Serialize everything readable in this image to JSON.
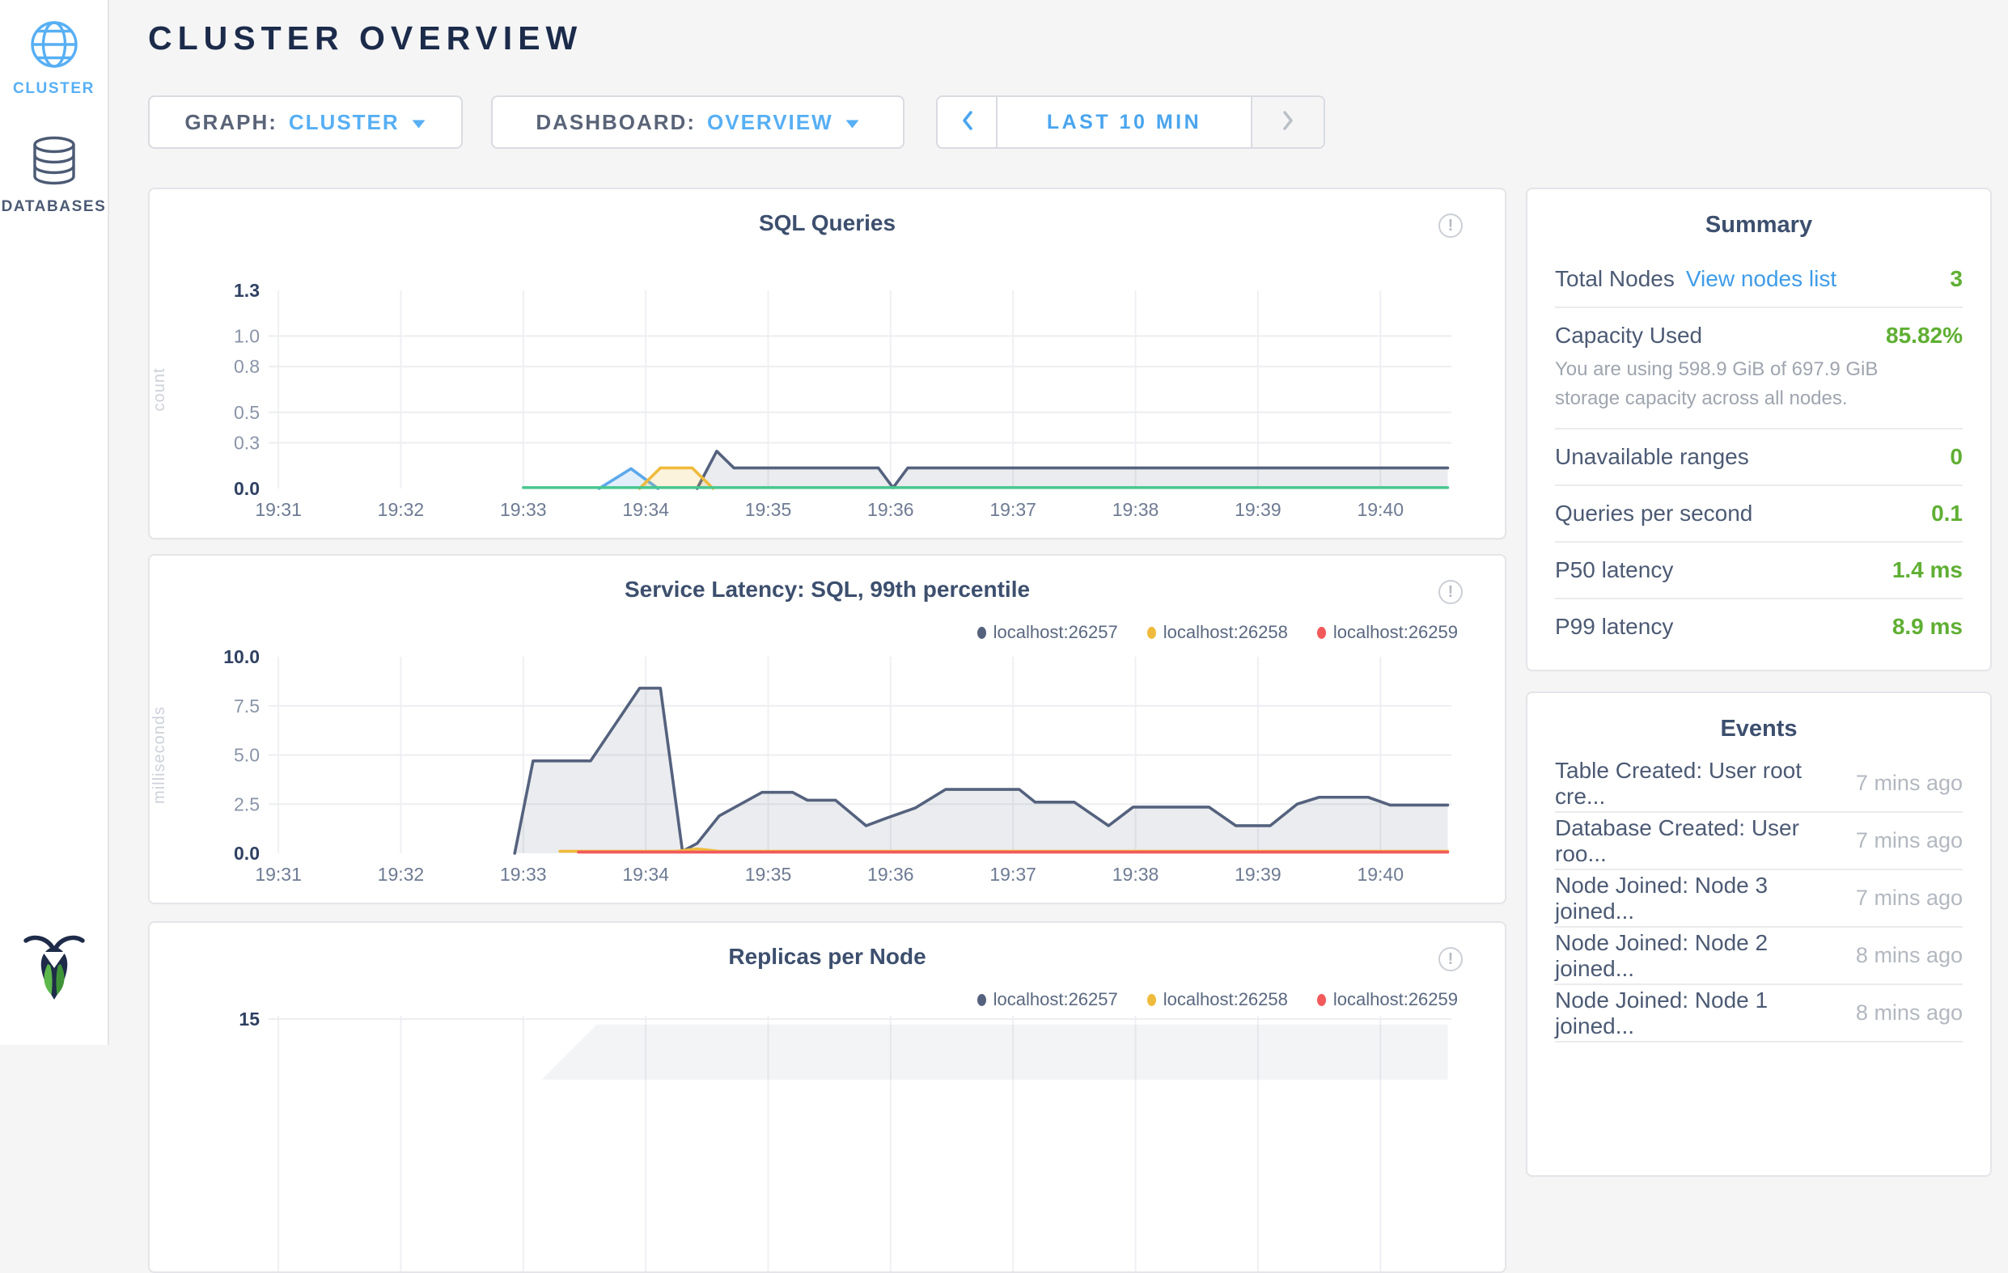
{
  "header": {
    "title": "CLUSTER OVERVIEW"
  },
  "sidebar": {
    "items": [
      {
        "label": "CLUSTER",
        "icon": "globe-icon",
        "active": true
      },
      {
        "label": "DATABASES",
        "icon": "database-icon",
        "active": false
      }
    ],
    "logo_icon": "cockroachdb-logo"
  },
  "toolbar": {
    "graph_label": "GRAPH:",
    "graph_value": "CLUSTER",
    "dashboard_label": "DASHBOARD:",
    "dashboard_value": "OVERVIEW",
    "time_range": "LAST 10 MIN"
  },
  "colors": {
    "accent_blue": "#57AFF4",
    "link_blue": "#3F9CE8",
    "navy_text": "#1C2B4A",
    "slate_text": "#4C5A74",
    "value_green": "#5FAF33",
    "series_slate": "#55627E",
    "series_yellow": "#EFBB3C",
    "series_red": "#F2595B",
    "series_green": "#47C78F",
    "series_blue": "#5CA8EB"
  },
  "chart_data": [
    {
      "id": "sql-queries",
      "type": "area",
      "title": "SQL Queries",
      "ylabel": "count",
      "xlim": [
        30.92,
        40.58
      ],
      "x_tick_values": [
        31,
        32,
        33,
        34,
        35,
        36,
        37,
        38,
        39,
        40
      ],
      "x_ticks": [
        "19:31",
        "19:32",
        "19:33",
        "19:34",
        "19:35",
        "19:36",
        "19:37",
        "19:38",
        "19:39",
        "19:40"
      ],
      "ylim": [
        0,
        1.3
      ],
      "y_tick_values": [
        0,
        0.3,
        0.5,
        0.8,
        1.0,
        1.3
      ],
      "y_tick_labels": [
        "0.0",
        "0.3",
        "0.5",
        "0.8",
        "1.0",
        "1.3"
      ],
      "grid_y": [
        0.3,
        0.5,
        0.8,
        1.0
      ],
      "legend": [],
      "series": [
        {
          "name": "slate-line",
          "color": "#55627E",
          "fill": "rgba(85,98,126,0.12)",
          "points": [
            [
              34.42,
              0
            ],
            [
              34.58,
              0.245
            ],
            [
              34.72,
              0.135
            ],
            [
              35.9,
              0.135
            ],
            [
              36.02,
              0.005
            ],
            [
              36.14,
              0.135
            ],
            [
              40.55,
              0.135
            ]
          ]
        },
        {
          "name": "blue-line",
          "color": "#5CA8EB",
          "fill": "rgba(92,168,235,0.18)",
          "points": [
            [
              33.62,
              0
            ],
            [
              33.88,
              0.13
            ],
            [
              34.1,
              0
            ]
          ]
        },
        {
          "name": "yellow-line",
          "color": "#EFBB3C",
          "fill": "rgba(239,187,60,0.18)",
          "points": [
            [
              33.95,
              0
            ],
            [
              34.12,
              0.135
            ],
            [
              34.38,
              0.135
            ],
            [
              34.55,
              0
            ]
          ]
        },
        {
          "name": "green-line",
          "color": "#47C78F",
          "fill": "none",
          "points": [
            [
              33.0,
              0.006
            ],
            [
              40.55,
              0.006
            ]
          ]
        }
      ]
    },
    {
      "id": "service-latency",
      "type": "area",
      "title": "Service Latency: SQL, 99th percentile",
      "ylabel": "milliseconds",
      "xlim": [
        30.92,
        40.58
      ],
      "x_tick_values": [
        31,
        32,
        33,
        34,
        35,
        36,
        37,
        38,
        39,
        40
      ],
      "x_ticks": [
        "19:31",
        "19:32",
        "19:33",
        "19:34",
        "19:35",
        "19:36",
        "19:37",
        "19:38",
        "19:39",
        "19:40"
      ],
      "ylim": [
        0,
        10
      ],
      "y_tick_values": [
        0,
        2.5,
        5.0,
        7.5,
        10.0
      ],
      "y_tick_labels": [
        "0.0",
        "2.5",
        "5.0",
        "7.5",
        "10.0"
      ],
      "grid_y": [
        2.5,
        5.0,
        7.5
      ],
      "legend": [
        {
          "label": "localhost:26257",
          "color": "#55627E"
        },
        {
          "label": "localhost:26258",
          "color": "#EFBB3C"
        },
        {
          "label": "localhost:26259",
          "color": "#F2595B"
        }
      ],
      "series": [
        {
          "name": "localhost:26257",
          "color": "#55627E",
          "fill": "rgba(85,98,126,0.12)",
          "points": [
            [
              32.93,
              0
            ],
            [
              33.08,
              4.7
            ],
            [
              33.55,
              4.7
            ],
            [
              33.95,
              8.4
            ],
            [
              34.12,
              8.4
            ],
            [
              34.3,
              0.1
            ],
            [
              34.42,
              0.5
            ],
            [
              34.6,
              1.9
            ],
            [
              34.95,
              3.1
            ],
            [
              35.2,
              3.1
            ],
            [
              35.32,
              2.7
            ],
            [
              35.55,
              2.7
            ],
            [
              35.8,
              1.4
            ],
            [
              35.95,
              1.75
            ],
            [
              36.2,
              2.3
            ],
            [
              36.45,
              3.25
            ],
            [
              37.05,
              3.25
            ],
            [
              37.18,
              2.6
            ],
            [
              37.5,
              2.6
            ],
            [
              37.78,
              1.4
            ],
            [
              37.98,
              2.35
            ],
            [
              38.6,
              2.35
            ],
            [
              38.82,
              1.4
            ],
            [
              39.1,
              1.4
            ],
            [
              39.32,
              2.5
            ],
            [
              39.5,
              2.85
            ],
            [
              39.9,
              2.85
            ],
            [
              40.08,
              2.45
            ],
            [
              40.55,
              2.45
            ]
          ]
        },
        {
          "name": "localhost:26258",
          "color": "#EFBB3C",
          "fill": "none",
          "points": [
            [
              33.3,
              0.1
            ],
            [
              34.25,
              0.1
            ],
            [
              34.42,
              0.22
            ],
            [
              34.6,
              0.1
            ],
            [
              40.55,
              0.1
            ]
          ]
        },
        {
          "name": "localhost:26259",
          "color": "#F2595B",
          "fill": "none",
          "points": [
            [
              33.45,
              0.06
            ],
            [
              40.55,
              0.06
            ]
          ]
        }
      ]
    },
    {
      "id": "replicas-per-node",
      "type": "area",
      "title": "Replicas per Node",
      "ylabel": "",
      "clipped": true,
      "xlim": [
        30.92,
        40.58
      ],
      "x_tick_values": [
        31,
        32,
        33,
        34,
        35,
        36,
        37,
        38,
        39,
        40
      ],
      "x_ticks": [
        "19:31",
        "19:32",
        "19:33",
        "19:34",
        "19:35",
        "19:36",
        "19:37",
        "19:38",
        "19:39",
        "19:40"
      ],
      "ylim": [
        10,
        15
      ],
      "y_tick_values": [
        15
      ],
      "y_tick_labels": [
        "15"
      ],
      "grid_y": [
        15
      ],
      "legend": [
        {
          "label": "localhost:26257",
          "color": "#55627E"
        },
        {
          "label": "localhost:26258",
          "color": "#EFBB3C"
        },
        {
          "label": "localhost:26259",
          "color": "#F2595B"
        }
      ],
      "series": [
        {
          "name": "visible-fill-top",
          "color": "none",
          "fill": "rgba(85,98,126,0.07)",
          "points": [
            [
              33.15,
              10
            ],
            [
              33.6,
              14.55
            ],
            [
              40.55,
              14.55
            ]
          ]
        }
      ]
    }
  ],
  "summary": {
    "title": "Summary",
    "rows": [
      {
        "label": "Total Nodes",
        "link": "View nodes list",
        "value": "3"
      },
      {
        "label": "Capacity Used",
        "value": "85.82%",
        "description": "You are using 598.9 GiB of 697.9 GiB storage capacity across all nodes."
      },
      {
        "label": "Unavailable ranges",
        "value": "0"
      },
      {
        "label": "Queries per second",
        "value": "0.1"
      },
      {
        "label": "P50 latency",
        "value": "1.4 ms"
      },
      {
        "label": "P99 latency",
        "value": "8.9 ms"
      }
    ]
  },
  "events": {
    "title": "Events",
    "rows": [
      {
        "title": "Table Created: User root cre...",
        "time": "7 mins ago"
      },
      {
        "title": "Database Created: User roo...",
        "time": "7 mins ago"
      },
      {
        "title": "Node Joined: Node 3 joined...",
        "time": "7 mins ago"
      },
      {
        "title": "Node Joined: Node 2 joined...",
        "time": "8 mins ago"
      },
      {
        "title": "Node Joined: Node 1 joined...",
        "time": "8 mins ago"
      }
    ]
  }
}
